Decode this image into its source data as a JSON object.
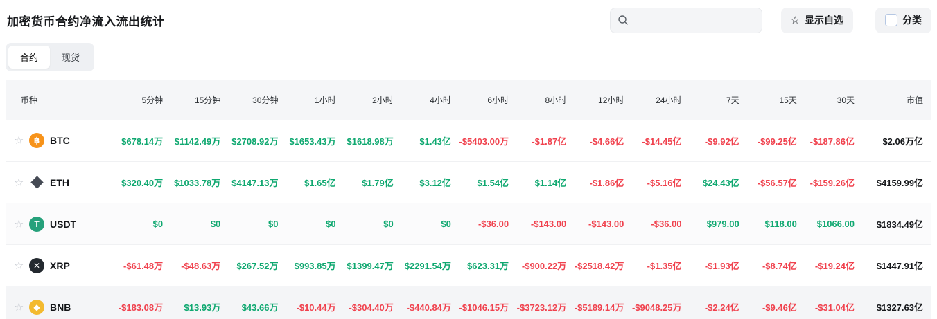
{
  "page": {
    "title": "加密货币合约净流入流出统计"
  },
  "toolbar": {
    "search_placeholder": "",
    "search_value": "",
    "favorites_label": "显示自选",
    "category_label": "分类"
  },
  "tabs": [
    {
      "label": "合约",
      "active": true
    },
    {
      "label": "现货",
      "active": false
    }
  ],
  "colors": {
    "positive": "#0fa870",
    "negative": "#f0424e",
    "neutral": "#15171a"
  },
  "table": {
    "columns": [
      "币种",
      "5分钟",
      "15分钟",
      "30分钟",
      "1小时",
      "2小时",
      "4小时",
      "6小时",
      "8小时",
      "12小时",
      "24小时",
      "7天",
      "15天",
      "30天",
      "市值"
    ],
    "rows": [
      {
        "symbol": "BTC",
        "icon": {
          "shape": "circle",
          "bg": "#f7931a",
          "glyph": "฿"
        },
        "values": [
          "$678.14万",
          "$1142.49万",
          "$2708.92万",
          "$1653.43万",
          "$1618.98万",
          "$1.43亿",
          "-$5403.00万",
          "-$1.87亿",
          "-$4.66亿",
          "-$14.45亿",
          "-$9.92亿",
          "-$99.25亿",
          "-$187.86亿"
        ],
        "market_cap": "$2.06万亿"
      },
      {
        "symbol": "ETH",
        "icon": {
          "shape": "diamond",
          "bg": "#454a54",
          "glyph": ""
        },
        "values": [
          "$320.40万",
          "$1033.78万",
          "$4147.13万",
          "$1.65亿",
          "$1.79亿",
          "$3.12亿",
          "$1.54亿",
          "$1.14亿",
          "-$1.86亿",
          "-$5.16亿",
          "$24.43亿",
          "-$56.57亿",
          "-$159.26亿"
        ],
        "market_cap": "$4159.99亿"
      },
      {
        "symbol": "USDT",
        "icon": {
          "shape": "circle",
          "bg": "#26a17b",
          "glyph": "T"
        },
        "values": [
          "$0",
          "$0",
          "$0",
          "$0",
          "$0",
          "$0",
          "-$36.00",
          "-$143.00",
          "-$143.00",
          "-$36.00",
          "$979.00",
          "$118.00",
          "$1066.00"
        ],
        "market_cap": "$1834.49亿"
      },
      {
        "symbol": "XRP",
        "icon": {
          "shape": "circle",
          "bg": "#23292f",
          "glyph": "✕"
        },
        "values": [
          "-$61.48万",
          "-$48.63万",
          "$267.52万",
          "$993.85万",
          "$1399.47万",
          "$2291.54万",
          "$623.31万",
          "-$900.22万",
          "-$2518.42万",
          "-$1.35亿",
          "-$1.93亿",
          "-$8.74亿",
          "-$19.24亿"
        ],
        "market_cap": "$1447.91亿"
      },
      {
        "symbol": "BNB",
        "icon": {
          "shape": "circle",
          "bg": "#f3ba2f",
          "glyph": "◆"
        },
        "values": [
          "-$183.08万",
          "$13.93万",
          "$43.66万",
          "-$10.44万",
          "-$304.40万",
          "-$440.84万",
          "-$1046.15万",
          "-$3723.12万",
          "-$5189.14万",
          "-$9048.25万",
          "-$2.24亿",
          "-$9.46亿",
          "-$31.04亿"
        ],
        "market_cap": "$1327.63亿"
      }
    ]
  }
}
